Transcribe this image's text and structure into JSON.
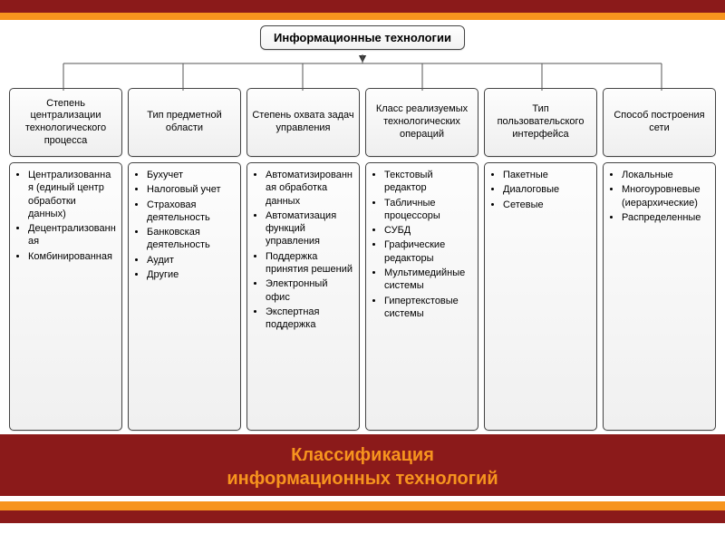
{
  "colors": {
    "bar_dark": "#8b1a1a",
    "bar_orange": "#f7941e",
    "box_border": "#444444",
    "box_bg_top": "#fdfdfd",
    "box_bg_bottom": "#f0f0f0",
    "text": "#222222"
  },
  "diagram": {
    "type": "tree",
    "root": "Информационные технологии",
    "root_fontsize": 13,
    "header_fontsize": 11,
    "item_fontsize": 11,
    "columns": [
      {
        "header": "Степень централизации технологического процесса",
        "items": [
          "Централизованная (единый центр обработки данных)",
          "Децентрализованная",
          "Комбинированная"
        ]
      },
      {
        "header": "Тип предметной области",
        "items": [
          "Бухучет",
          "Налоговый учет",
          "Страховая деятельность",
          "Банковская деятельность",
          "Аудит",
          "Другие"
        ]
      },
      {
        "header": "Степень охвата задач управления",
        "items": [
          "Автоматизированная обработка данных",
          "Автоматизация функций управления",
          "Поддержка принятия решений",
          "Электронный офис",
          "Экспертная поддержка"
        ]
      },
      {
        "header": "Класс реализуемых технологических операций",
        "items": [
          "Текстовый редактор",
          "Табличные процессоры",
          "СУБД",
          "Графические редакторы",
          "Мультимедийные системы",
          "Гипертекстовые системы"
        ]
      },
      {
        "header": "Тип пользовательского интерфейса",
        "items": [
          "Пакетные",
          "Диалоговые",
          "Сетевые"
        ]
      },
      {
        "header": "Способ построения сети",
        "items": [
          "Локальные",
          "Многоуровневые (иерархические)",
          "Распределенные"
        ]
      }
    ]
  },
  "footer": {
    "line1": "Классификация",
    "line2": "информационных технологий"
  }
}
